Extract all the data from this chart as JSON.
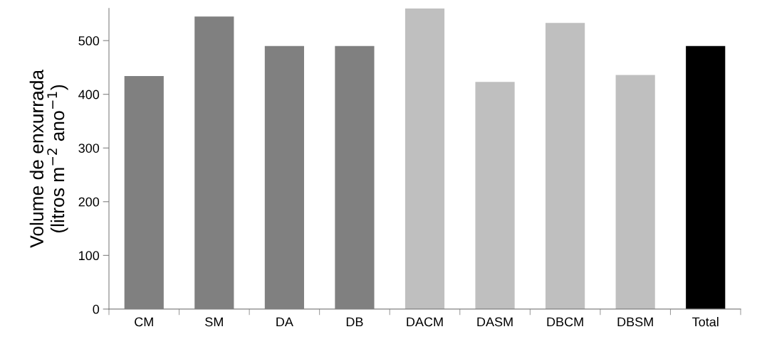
{
  "chart_data": {
    "type": "bar",
    "ylabel": "Volume de enxurrada\n(litros m$^{−2}$ ano$^{−1}$)",
    "categories": [
      "CM",
      "SM",
      "DA",
      "DB",
      "DACM",
      "DASM",
      "DBCM",
      "DBSM",
      "Total"
    ],
    "values": [
      434,
      545,
      490,
      490,
      560,
      423,
      533,
      436,
      490
    ],
    "colors": [
      "#808080",
      "#808080",
      "#808080",
      "#808080",
      "#bfbfbf",
      "#bfbfbf",
      "#bfbfbf",
      "#bfbfbf",
      "#000000"
    ],
    "ylim": [
      0,
      560
    ],
    "yticks": [
      0,
      100,
      200,
      300,
      400,
      500
    ],
    "grid": false,
    "legend": false
  }
}
